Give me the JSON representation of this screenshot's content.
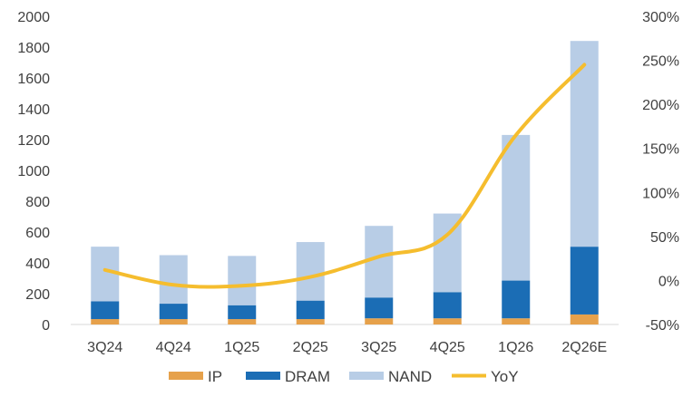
{
  "chart_data": {
    "type": "bar",
    "stacked": true,
    "categories": [
      "3Q24",
      "4Q24",
      "1Q25",
      "2Q25",
      "3Q25",
      "4Q25",
      "1Q26",
      "2Q26E"
    ],
    "series": [
      {
        "name": "IP",
        "color": "#e6a14b",
        "values": [
          35,
          35,
          35,
          35,
          40,
          40,
          40,
          65
        ]
      },
      {
        "name": "DRAM",
        "color": "#1b6db5",
        "values": [
          115,
          100,
          90,
          120,
          135,
          170,
          245,
          440
        ]
      },
      {
        "name": "NAND",
        "color": "#b8cde6",
        "values": [
          355,
          315,
          320,
          380,
          465,
          510,
          945,
          1335
        ]
      }
    ],
    "line_series": {
      "name": "YoY",
      "color": "#f5bd2e",
      "axis": "right",
      "values": [
        12,
        -5,
        -6,
        4,
        27,
        52,
        165,
        245
      ]
    },
    "y_left": {
      "min": 0,
      "max": 2000,
      "ticks": [
        0,
        200,
        400,
        600,
        800,
        1000,
        1200,
        1400,
        1600,
        1800,
        2000
      ]
    },
    "y_right": {
      "min": -50,
      "max": 300,
      "ticks": [
        "-50%",
        "0%",
        "50%",
        "100%",
        "150%",
        "200%",
        "250%",
        "300%"
      ]
    },
    "grid": false,
    "legend_position": "bottom"
  },
  "legend": [
    {
      "label": "IP",
      "color": "#e6a14b",
      "kind": "bar"
    },
    {
      "label": "DRAM",
      "color": "#1b6db5",
      "kind": "bar"
    },
    {
      "label": "NAND",
      "color": "#b8cde6",
      "kind": "bar"
    },
    {
      "label": "YoY",
      "color": "#f5bd2e",
      "kind": "line"
    }
  ]
}
